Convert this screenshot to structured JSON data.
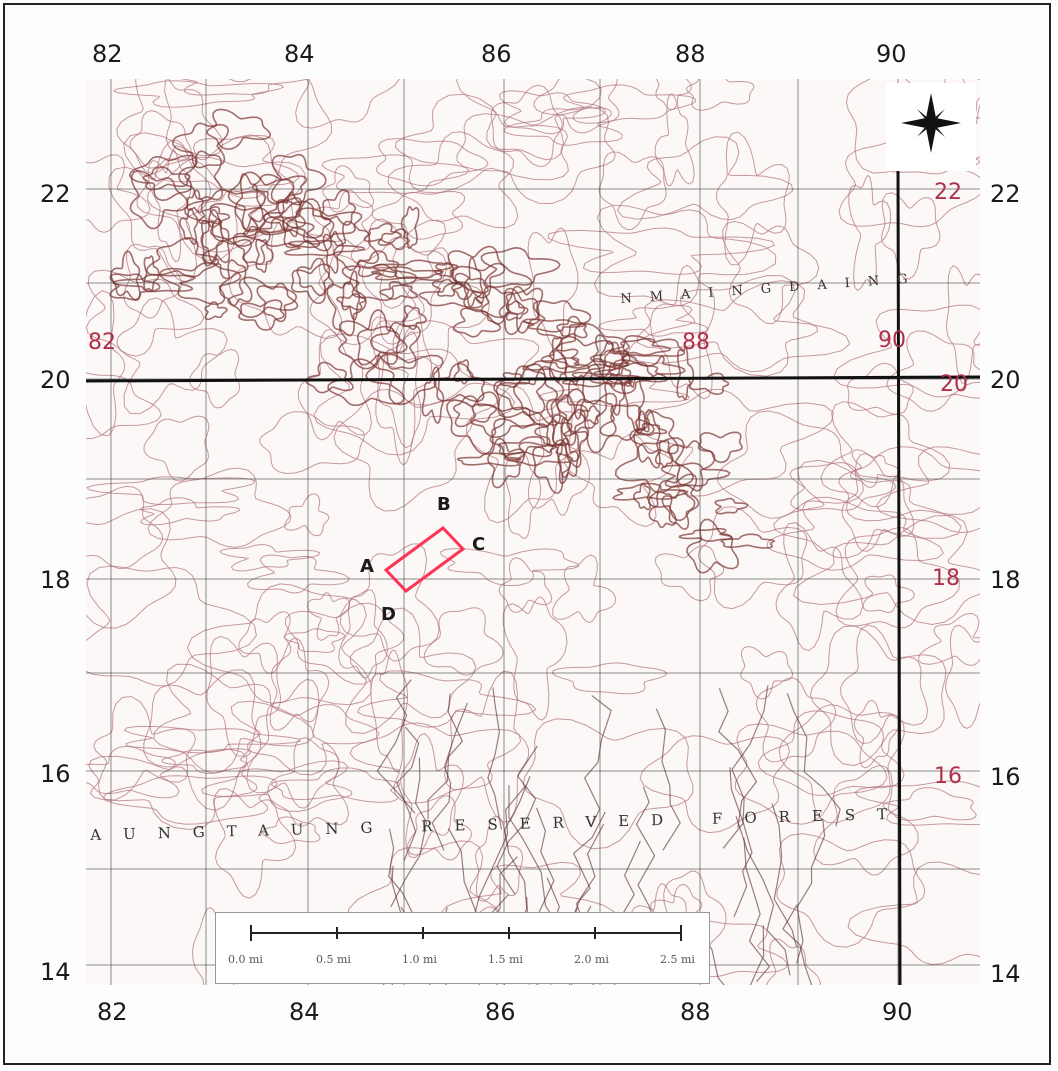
{
  "map": {
    "grid": {
      "x_top": [
        "82",
        "84",
        "86",
        "88",
        "90"
      ],
      "x_bottom": [
        "82",
        "84",
        "86",
        "88",
        "90"
      ],
      "y_left": [
        "22",
        "20",
        "18",
        "16",
        "14"
      ],
      "y_right": [
        "22",
        "20",
        "18",
        "16",
        "14"
      ]
    },
    "points": {
      "a": "A",
      "b": "B",
      "c": "C",
      "d": "D"
    },
    "place_labels": {
      "reserved_forest": "AUNGTAUNG RESERVED FOREST",
      "region": "NMAINGDAING"
    },
    "red_grid_numbers": {
      "n82": "82",
      "n88": "88",
      "n90": "90",
      "n20": "20",
      "n22": "22",
      "n18": "18",
      "n16": "16"
    },
    "scale_bar": {
      "labels": [
        "0.0 mi",
        "0.5 mi",
        "1.0 mi",
        "1.5 mi",
        "2.0 mi",
        "2.5 mi"
      ]
    },
    "compass": {
      "icon": "compass-rose-icon"
    },
    "colors": {
      "contour": "#b07078",
      "ridge": "#7a3530",
      "grid": "#333333",
      "highlight": "#ff3355"
    }
  }
}
